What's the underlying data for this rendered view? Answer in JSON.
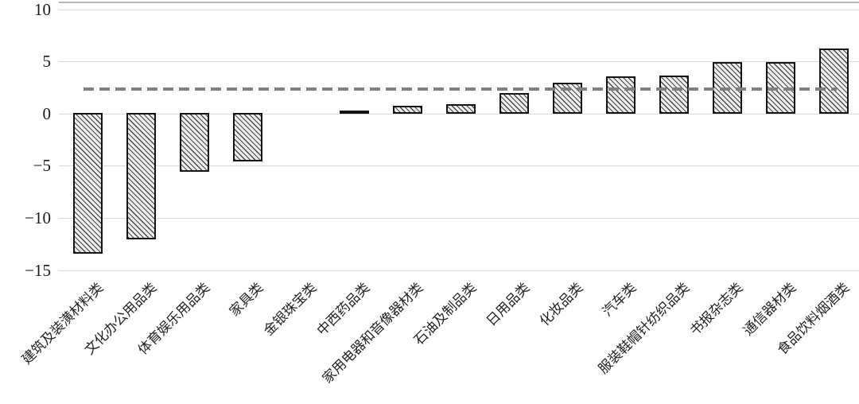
{
  "chart_data": {
    "type": "bar",
    "title": "",
    "xlabel": "",
    "ylabel": "",
    "categories": [
      "建筑及装潢材料类",
      "文化办公用品类",
      "体育娱乐用品类",
      "家具类",
      "金银珠宝类",
      "中西药品类",
      "家用电器和音像器材类",
      "石油及制品类",
      "日用品类",
      "化妆品类",
      "汽车类",
      "服装鞋帽针纺织品类",
      "书报杂志类",
      "通信器材类",
      "食品饮料烟酒类"
    ],
    "values": [
      -13.5,
      -12.1,
      -5.6,
      -4.6,
      0,
      0.2,
      0.8,
      0.9,
      2.0,
      3.0,
      3.6,
      3.7,
      5.0,
      5.0,
      6.3
    ],
    "reference_line_value": 2.4,
    "reference_line_style": "dashed",
    "y_ticks": [
      10,
      5,
      0,
      -5,
      -10,
      -15
    ],
    "y_tick_labels": [
      "10",
      "5",
      "0",
      "−5",
      "−10",
      "−15"
    ],
    "ylim": [
      -15,
      10.8
    ],
    "grid": true,
    "legend": false,
    "x_label_rotation_deg": 45,
    "bar_style": "diagonal-hatch",
    "colors": {
      "bar_fill": "#ececec",
      "bar_hatch": "#4a4a4a",
      "bar_border": "#141414",
      "gridline": "#d9d9d9",
      "reference_line": "#7f7f7f",
      "text": "#1a1a1a"
    }
  }
}
